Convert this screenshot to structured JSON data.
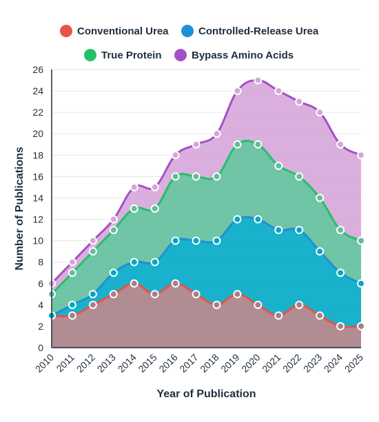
{
  "chart_data": {
    "type": "area",
    "stacked": true,
    "x": [
      "2010",
      "2011",
      "2012",
      "2013",
      "2014",
      "2015",
      "2016",
      "2017",
      "2018",
      "2019",
      "2020",
      "2021",
      "2022",
      "2023",
      "2024",
      "2025"
    ],
    "series": [
      {
        "name": "Conventional Urea",
        "color": "#e8534a",
        "fill": "#a87f86",
        "values": [
          3,
          3,
          4,
          5,
          6,
          5,
          6,
          5,
          4,
          5,
          4,
          3,
          4,
          3,
          2,
          2
        ]
      },
      {
        "name": "Controlled-Release Urea",
        "color": "#1e90d6",
        "fill": "#00a8c6",
        "values": [
          0,
          1,
          1,
          2,
          2,
          3,
          4,
          5,
          6,
          7,
          8,
          8,
          7,
          6,
          5,
          4
        ]
      },
      {
        "name": "True Protein",
        "color": "#22c06a",
        "fill": "#5fbf9b",
        "values": [
          2,
          3,
          4,
          4,
          5,
          5,
          6,
          6,
          6,
          7,
          7,
          6,
          5,
          5,
          4,
          4
        ]
      },
      {
        "name": "Bypass Amino Acids",
        "color": "#a64fc4",
        "fill": "#d6a6d9",
        "values": [
          1,
          1,
          1,
          1,
          2,
          2,
          2,
          3,
          4,
          5,
          6,
          7,
          7,
          8,
          8,
          8
        ]
      }
    ],
    "ylim": [
      0,
      26
    ],
    "yticks": [
      "0",
      "2",
      "4",
      "6",
      "8",
      "10",
      "12",
      "14",
      "16",
      "18",
      "20",
      "22",
      "24",
      "26"
    ],
    "xlabel": "Year of Publication",
    "ylabel": "Number of Publications",
    "grid": true,
    "legend_position": "top"
  }
}
